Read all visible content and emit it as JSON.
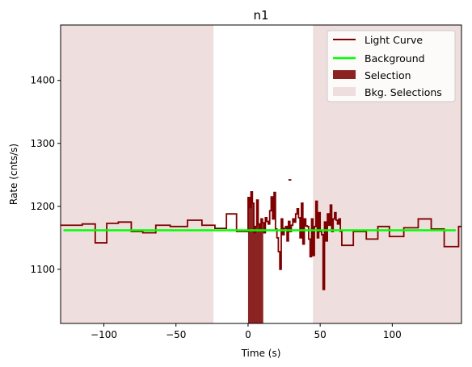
{
  "chart_data": {
    "type": "line",
    "title": "n1",
    "xlabel": "Time (s)",
    "ylabel": "Rate (cnts/s)",
    "xlim": [
      -130,
      148
    ],
    "ylim": [
      1014,
      1488
    ],
    "xticks": [
      -100,
      -50,
      0,
      50,
      100
    ],
    "xtick_labels": [
      "−100",
      "−50",
      "0",
      "50",
      "100"
    ],
    "yticks": [
      1100,
      1200,
      1300,
      1400
    ],
    "ytick_labels": [
      "1100",
      "1200",
      "1300",
      "1400"
    ],
    "grid": false,
    "legend_position": "top-right",
    "colors": {
      "light_curve": "#7f0000",
      "background": "#00ff00",
      "selection": "#8b2323",
      "bkg_selection": "#efdede"
    },
    "legend": [
      {
        "label": "Light Curve",
        "kind": "line",
        "color": "#7f0000"
      },
      {
        "label": "Background",
        "kind": "line",
        "color": "#00ff00"
      },
      {
        "label": "Selection",
        "kind": "patch",
        "color": "#8b2323"
      },
      {
        "label": "Bkg. Selections",
        "kind": "patch",
        "color": "#efdede"
      }
    ],
    "bkg_selections": [
      [
        -130,
        -24
      ],
      [
        45,
        148
      ]
    ],
    "selection": [
      0,
      10.5
    ],
    "background": {
      "x": [
        -128,
        144
      ],
      "value": 1162
    },
    "light_curve": {
      "x": [
        -130,
        -115,
        -106,
        -98,
        -90,
        -81,
        -73,
        -64,
        -54,
        -42,
        -32,
        -23,
        -15,
        -8,
        0,
        1,
        2,
        3,
        4,
        5,
        6,
        7,
        8,
        9,
        10,
        11,
        12,
        13,
        14,
        15,
        16,
        17,
        18,
        19,
        20,
        21,
        22,
        23,
        24,
        25,
        26,
        27,
        28,
        29,
        30,
        31,
        32,
        33,
        34,
        35,
        36,
        37,
        38,
        39,
        40,
        41,
        42,
        43,
        44,
        45,
        46,
        47,
        48,
        49,
        50,
        51,
        52,
        53,
        54,
        55,
        56,
        57,
        58,
        59,
        60,
        61,
        62,
        63,
        64,
        65,
        73,
        82,
        90,
        98,
        108,
        118,
        127,
        136,
        146
      ],
      "y": [
        1170,
        1172,
        1142,
        1173,
        1175,
        1160,
        1158,
        1170,
        1168,
        1178,
        1170,
        1165,
        1188,
        1160,
        1214,
        1198,
        1223,
        1205,
        1158,
        1168,
        1210,
        1172,
        1165,
        1180,
        1174,
        1158,
        1182,
        1176,
        1172,
        1193,
        1215,
        1180,
        1222,
        1164,
        1150,
        1128,
        1100,
        1180,
        1155,
        1165,
        1168,
        1145,
        1176,
        1160,
        1170,
        1180,
        1175,
        1188,
        1196,
        1182,
        1150,
        1205,
        1140,
        1180,
        1169,
        1168,
        1148,
        1120,
        1180,
        1122,
        1168,
        1208,
        1150,
        1190,
        1160,
        1155,
        1068,
        1175,
        1145,
        1188,
        1170,
        1202,
        1160,
        1180,
        1190,
        1178,
        1172,
        1180,
        1160,
        1138,
        1160,
        1148,
        1168,
        1152,
        1166,
        1180,
        1164,
        1136,
        1168
      ]
    },
    "stray_segment": {
      "x": [
        28,
        30
      ],
      "y": 1242
    }
  }
}
